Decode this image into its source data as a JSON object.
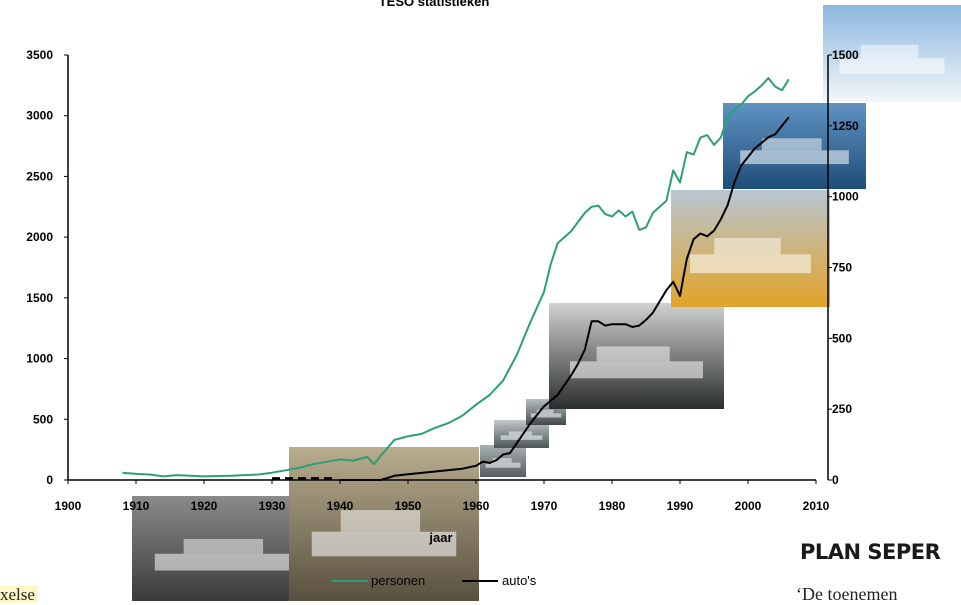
{
  "colors": {
    "personen": "#2e9e78",
    "autos": "#000000"
  },
  "photo_icons": [
    "ferry-photo-1910s",
    "ferry-photo-1930s",
    "ferry-photo-1962",
    "ferry-photo-1966",
    "ferry-photo-1970",
    "ferry-photo-1975",
    "ferry-photo-1990",
    "ferry-photo-2000",
    "ferry-photo-2006"
  ],
  "chart_data": {
    "type": "line",
    "title": "TESO statistieken",
    "xlabel": "jaar",
    "x_ticks": [
      1900,
      1910,
      1920,
      1930,
      1940,
      1950,
      1960,
      1970,
      1980,
      1990,
      2000,
      2010
    ],
    "left_axis_ticks": [
      0,
      500,
      1000,
      1500,
      2000,
      2500,
      3000,
      3500
    ],
    "right_axis_ticks": [
      0,
      250,
      500,
      750,
      1000,
      1250,
      1500
    ],
    "xlim": [
      1900,
      2010
    ],
    "ylim_left": [
      0,
      3500
    ],
    "ylim_right": [
      0,
      1500
    ],
    "legend": [
      {
        "key": "personen",
        "label": "personen"
      },
      {
        "key": "autos",
        "label": "auto's"
      }
    ],
    "legend_position": "bottom",
    "series": [
      {
        "name": "personen",
        "axis": "left",
        "points": [
          [
            1908,
            60
          ],
          [
            1910,
            50
          ],
          [
            1912,
            45
          ],
          [
            1914,
            30
          ],
          [
            1916,
            40
          ],
          [
            1918,
            35
          ],
          [
            1920,
            30
          ],
          [
            1924,
            35
          ],
          [
            1928,
            45
          ],
          [
            1930,
            60
          ],
          [
            1932,
            80
          ],
          [
            1934,
            100
          ],
          [
            1936,
            130
          ],
          [
            1938,
            150
          ],
          [
            1940,
            170
          ],
          [
            1942,
            160
          ],
          [
            1944,
            190
          ],
          [
            1945,
            130
          ],
          [
            1946,
            200
          ],
          [
            1948,
            330
          ],
          [
            1950,
            360
          ],
          [
            1952,
            380
          ],
          [
            1954,
            430
          ],
          [
            1956,
            470
          ],
          [
            1958,
            530
          ],
          [
            1960,
            620
          ],
          [
            1962,
            700
          ],
          [
            1964,
            820
          ],
          [
            1966,
            1030
          ],
          [
            1968,
            1300
          ],
          [
            1970,
            1550
          ],
          [
            1971,
            1780
          ],
          [
            1972,
            1950
          ],
          [
            1974,
            2050
          ],
          [
            1976,
            2200
          ],
          [
            1977,
            2250
          ],
          [
            1978,
            2260
          ],
          [
            1979,
            2190
          ],
          [
            1980,
            2170
          ],
          [
            1981,
            2220
          ],
          [
            1982,
            2170
          ],
          [
            1983,
            2210
          ],
          [
            1984,
            2060
          ],
          [
            1985,
            2080
          ],
          [
            1986,
            2200
          ],
          [
            1988,
            2300
          ],
          [
            1989,
            2550
          ],
          [
            1990,
            2450
          ],
          [
            1991,
            2700
          ],
          [
            1992,
            2680
          ],
          [
            1993,
            2820
          ],
          [
            1994,
            2840
          ],
          [
            1995,
            2760
          ],
          [
            1996,
            2820
          ],
          [
            1997,
            2990
          ],
          [
            1998,
            3050
          ],
          [
            1999,
            3090
          ],
          [
            2000,
            3160
          ],
          [
            2001,
            3200
          ],
          [
            2002,
            3250
          ],
          [
            2003,
            3310
          ],
          [
            2004,
            3240
          ],
          [
            2005,
            3210
          ],
          [
            2006,
            3300
          ]
        ]
      },
      {
        "name": "auto's",
        "axis": "right",
        "points": [
          [
            1940,
            0
          ],
          [
            1946,
            0
          ],
          [
            1948,
            15
          ],
          [
            1950,
            20
          ],
          [
            1952,
            25
          ],
          [
            1954,
            30
          ],
          [
            1956,
            35
          ],
          [
            1958,
            40
          ],
          [
            1960,
            50
          ],
          [
            1961,
            65
          ],
          [
            1962,
            60
          ],
          [
            1963,
            70
          ],
          [
            1964,
            90
          ],
          [
            1965,
            95
          ],
          [
            1966,
            130
          ],
          [
            1968,
            200
          ],
          [
            1970,
            260
          ],
          [
            1972,
            300
          ],
          [
            1974,
            370
          ],
          [
            1975,
            410
          ],
          [
            1976,
            460
          ],
          [
            1977,
            560
          ],
          [
            1978,
            560
          ],
          [
            1979,
            545
          ],
          [
            1980,
            550
          ],
          [
            1982,
            550
          ],
          [
            1983,
            540
          ],
          [
            1984,
            545
          ],
          [
            1985,
            565
          ],
          [
            1986,
            590
          ],
          [
            1987,
            630
          ],
          [
            1988,
            670
          ],
          [
            1989,
            700
          ],
          [
            1990,
            650
          ],
          [
            1991,
            780
          ],
          [
            1992,
            850
          ],
          [
            1993,
            870
          ],
          [
            1994,
            860
          ],
          [
            1995,
            880
          ],
          [
            1996,
            920
          ],
          [
            1997,
            970
          ],
          [
            1998,
            1050
          ],
          [
            1999,
            1110
          ],
          [
            2000,
            1140
          ],
          [
            2001,
            1170
          ],
          [
            2002,
            1190
          ],
          [
            2003,
            1210
          ],
          [
            2004,
            1220
          ],
          [
            2005,
            1250
          ],
          [
            2006,
            1280
          ]
        ]
      },
      {
        "name": "",
        "axis": "right",
        "style": "dashed",
        "points": [
          [
            1930,
            5
          ],
          [
            1939,
            5
          ]
        ]
      }
    ]
  },
  "captions": {
    "left_fragment": "xelse",
    "heading_fragment": "PLAN SEPER",
    "body_fragment": "‘De toenemen"
  }
}
